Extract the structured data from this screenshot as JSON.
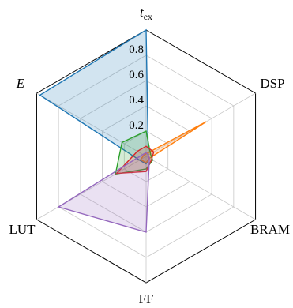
{
  "chart_data": {
    "type": "radar",
    "axes": [
      {
        "label": "t",
        "sub": "ex"
      },
      {
        "label": "DSP",
        "sub": ""
      },
      {
        "label": "BRAM",
        "sub": ""
      },
      {
        "label": "FF",
        "sub": ""
      },
      {
        "label": "LUT",
        "sub": ""
      },
      {
        "label": "E",
        "sub": ""
      }
    ],
    "rlim": [
      0,
      1
    ],
    "ticks": [
      0.2,
      0.4,
      0.6,
      0.8
    ],
    "tick_labels": [
      "0.2",
      "0.4",
      "0.6",
      "0.8"
    ],
    "grid": true,
    "series": [
      {
        "color": "#1f77b4",
        "values": [
          1.0,
          0.02,
          0.03,
          0.06,
          0.06,
          0.97
        ]
      },
      {
        "color": "#ff7f0e",
        "values": [
          0.02,
          0.55,
          0.03,
          0.05,
          0.05,
          0.02
        ]
      },
      {
        "color": "#2ca02c",
        "values": [
          0.2,
          0.04,
          0.06,
          0.1,
          0.28,
          0.22
        ]
      },
      {
        "color": "#d62728",
        "values": [
          0.08,
          0.07,
          0.05,
          0.12,
          0.27,
          0.08
        ]
      },
      {
        "color": "#9467bd",
        "values": [
          0.03,
          0.02,
          0.03,
          0.6,
          0.8,
          0.03
        ]
      }
    ]
  }
}
